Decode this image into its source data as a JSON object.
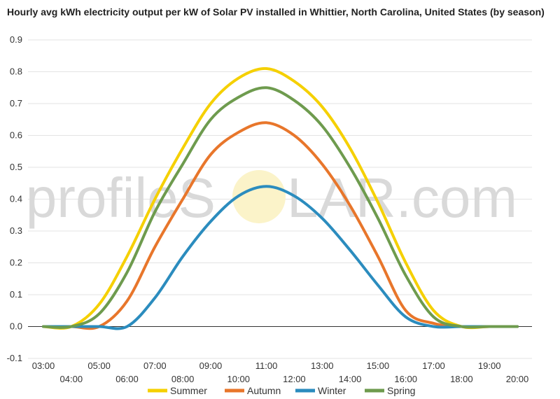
{
  "chart_data": {
    "type": "line",
    "title": "Hourly avg kWh electricity output per kW of Solar PV installed in Whittier, North Carolina, United States (by season)",
    "xlabel": "",
    "ylabel": "",
    "ylim": [
      -0.1,
      0.9
    ],
    "yticks": [
      "-0.1",
      "0.0",
      "0.1",
      "0.2",
      "0.3",
      "0.4",
      "0.5",
      "0.6",
      "0.7",
      "0.8",
      "0.9"
    ],
    "x": [
      "03:00",
      "04:00",
      "05:00",
      "06:00",
      "07:00",
      "08:00",
      "09:00",
      "10:00",
      "11:00",
      "12:00",
      "13:00",
      "14:00",
      "15:00",
      "16:00",
      "17:00",
      "18:00",
      "19:00",
      "20:00"
    ],
    "grid": true,
    "legend": "bottom",
    "series": [
      {
        "name": "Summer",
        "color": "#f5d000",
        "values": [
          0,
          0,
          0.07,
          0.22,
          0.4,
          0.56,
          0.7,
          0.78,
          0.81,
          0.77,
          0.69,
          0.56,
          0.39,
          0.2,
          0.05,
          0,
          0,
          0
        ]
      },
      {
        "name": "Autumn",
        "color": "#e8762b",
        "values": [
          0,
          0,
          0,
          0.08,
          0.25,
          0.4,
          0.54,
          0.61,
          0.64,
          0.6,
          0.51,
          0.38,
          0.22,
          0.05,
          0.01,
          0,
          0,
          0
        ]
      },
      {
        "name": "Winter",
        "color": "#2b8cbe",
        "values": [
          0,
          0,
          0,
          0,
          0.09,
          0.22,
          0.33,
          0.41,
          0.44,
          0.41,
          0.34,
          0.24,
          0.13,
          0.03,
          0,
          0,
          0,
          0
        ]
      },
      {
        "name": "Spring",
        "color": "#6e9b4e",
        "values": [
          0,
          0,
          0.04,
          0.17,
          0.36,
          0.51,
          0.65,
          0.72,
          0.75,
          0.71,
          0.63,
          0.5,
          0.34,
          0.16,
          0.03,
          0,
          0,
          0
        ]
      }
    ]
  },
  "watermark": {
    "left": "profileS",
    "right": "LAR.com"
  }
}
